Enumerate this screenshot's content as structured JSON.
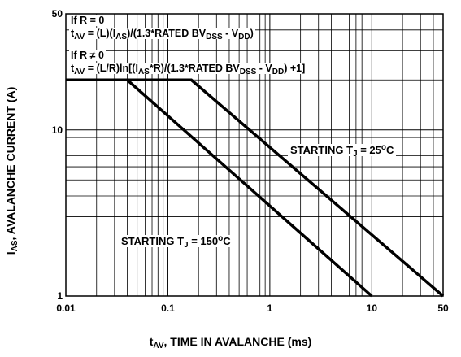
{
  "chart_data": {
    "type": "line",
    "x_scale": "log",
    "y_scale": "log",
    "xlim": [
      0.01,
      50
    ],
    "ylim": [
      1,
      50
    ],
    "x_ticks": [
      "0.01",
      "0.1",
      "1",
      "10",
      "50"
    ],
    "y_ticks": [
      "1",
      "10",
      "50"
    ],
    "grid": true,
    "x_label": {
      "main": "t",
      "sub": "AV",
      "rest": ", TIME IN AVALANCHE (ms)"
    },
    "y_label": {
      "main": "I",
      "sub": "AS",
      "rest": ", AVALANCHE CURRENT (A)"
    },
    "series": [
      {
        "label_main": "STARTING T",
        "label_sub": "J",
        "label_val": " = 25",
        "label_sup": "o",
        "label_unit": "C",
        "points": [
          [
            0.01,
            20
          ],
          [
            0.17,
            20
          ],
          [
            50,
            1
          ]
        ]
      },
      {
        "label_main": "STARTING T",
        "label_sub": "J",
        "label_val": " = 150",
        "label_sup": "o",
        "label_unit": "C",
        "points": [
          [
            0.01,
            20
          ],
          [
            0.04,
            20
          ],
          [
            10,
            1
          ]
        ]
      }
    ],
    "annotations": {
      "line1": "If R = 0",
      "line2_a": "t",
      "line2_a_sub": "AV",
      "line2_b": " = (L)(I",
      "line2_b_sub": "AS",
      "line2_c": ")/(1.3*RATED BV",
      "line2_c_sub": "DSS",
      "line2_d": " - V",
      "line2_d_sub": "DD",
      "line2_e": ")",
      "line3": "If R ≠ 0",
      "line4_a": "t",
      "line4_a_sub": "AV",
      "line4_b": " = (L/R)ln[(I",
      "line4_b_sub": "AS",
      "line4_c": "*R)/(1.3*RATED BV",
      "line4_c_sub": "DSS",
      "line4_d": " - V",
      "line4_d_sub": "DD",
      "line4_e": ") +1]"
    },
    "colors": {
      "line": "#000000",
      "grid": "#000000",
      "background": "#ffffff"
    }
  }
}
